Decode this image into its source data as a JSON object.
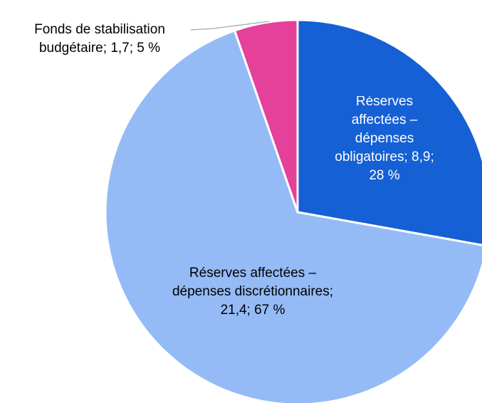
{
  "chart_data": {
    "type": "pie",
    "categories": [
      "Réserves affectées – dépenses obligatoires",
      "Réserves affectées – dépenses discrétionnaires",
      "Fonds de stabilisation budgétaire"
    ],
    "values": [
      8.9,
      21.4,
      1.7
    ],
    "value_labels": [
      "8,9",
      "21,4",
      "1,7"
    ],
    "percents": [
      28,
      67,
      5
    ],
    "percent_labels": [
      "28 %",
      "67 %",
      "5 %"
    ],
    "label_separator": "; ",
    "colors": [
      "#1560d4",
      "#94bbf6",
      "#e5409a"
    ],
    "label_colors": [
      "#ffffff",
      "#000000",
      "#000000"
    ]
  }
}
